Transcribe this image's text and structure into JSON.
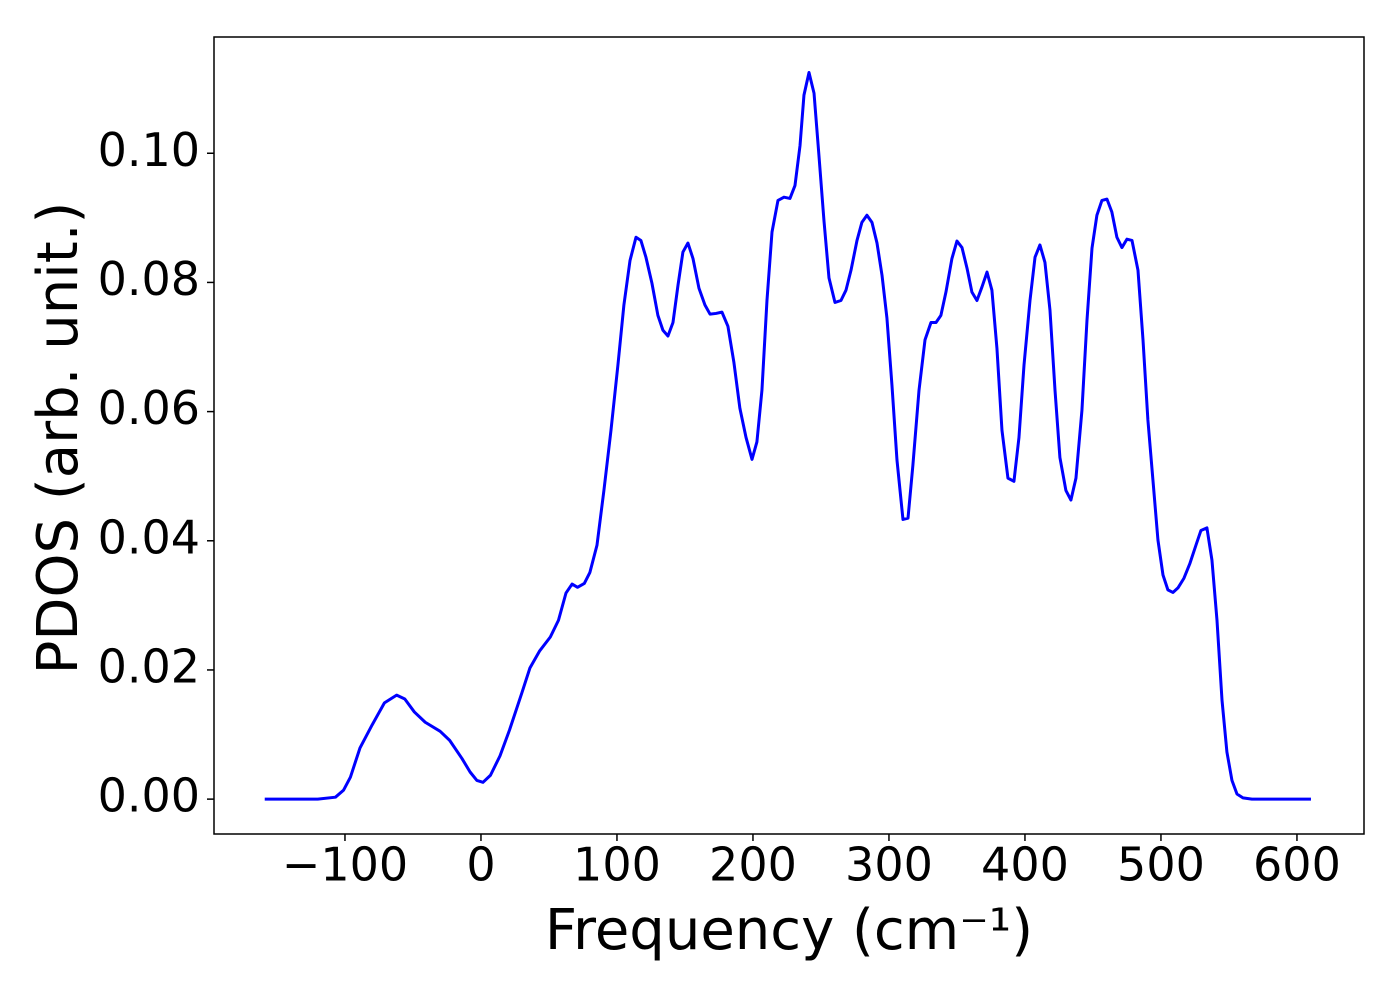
{
  "chart_data": {
    "type": "line",
    "x_label": "Frequency (cm⁻¹)",
    "y_label": "PDOS (arb. unit.)",
    "color": "#0000ff",
    "xlim": [
      -196.3,
      649.3
    ],
    "ylim": [
      -0.0054,
      0.118
    ],
    "xticks": [
      {
        "value": -100,
        "label": "−100"
      },
      0,
      100,
      200,
      300,
      400,
      500,
      600
    ],
    "yticks": [
      {
        "value": 0,
        "label": "0.00"
      },
      {
        "value": 0.02,
        "label": "0.02"
      },
      {
        "value": 0.04,
        "label": "0.04"
      },
      {
        "value": 0.06,
        "label": "0.06"
      },
      {
        "value": 0.08,
        "label": "0.08"
      },
      {
        "value": 0.1,
        "label": "0.10"
      }
    ],
    "x": [
      -159,
      -120,
      -107,
      -101,
      -96,
      -89,
      -80,
      -71,
      -62,
      -56,
      -49,
      -41,
      -30,
      -23,
      -14,
      -8,
      -3,
      1.5,
      7,
      14,
      21,
      30,
      36,
      43,
      51,
      57,
      62.5,
      67,
      71,
      76,
      80.1,
      85.3,
      90.4,
      95.6,
      100.7,
      105.1,
      109.6,
      114,
      117.6,
      121.3,
      125.7,
      130.1,
      133.8,
      137.5,
      141.2,
      144.9,
      148.5,
      152.2,
      155.9,
      160.3,
      164.7,
      168.4,
      172.8,
      177.2,
      181.6,
      186,
      190.4,
      194.9,
      199.3,
      202.9,
      206.6,
      210.3,
      214,
      218.4,
      222.8,
      227.2,
      230.9,
      234.6,
      237.5,
      241.2,
      244.9,
      248.5,
      252.2,
      255.9,
      260.3,
      264.7,
      268.4,
      272.1,
      276.5,
      280.1,
      283.8,
      287.5,
      291.2,
      294.9,
      298.5,
      302.2,
      305.9,
      310.3,
      314,
      317.6,
      322.1,
      326.5,
      330.9,
      334.6,
      338.2,
      341.9,
      346.3,
      350,
      353.7,
      357.4,
      361,
      364.7,
      368.4,
      372.1,
      375.7,
      379.4,
      383.1,
      387.5,
      391.9,
      395.6,
      399.3,
      403.7,
      407.4,
      411,
      414.7,
      418.4,
      422.1,
      425.7,
      430.1,
      433.8,
      437.5,
      441.9,
      445.6,
      449.3,
      452.9,
      456.6,
      460.3,
      463.9,
      467.6,
      471.3,
      475,
      478.7,
      483.1,
      486.8,
      490.4,
      494.1,
      497.8,
      501.5,
      505.1,
      508.8,
      512.5,
      516.9,
      521.3,
      525.7,
      529.4,
      533.8,
      537.5,
      541.2,
      544.9,
      548.5,
      552.2,
      555.9,
      560.3,
      566.9,
      610.3
    ],
    "values": [
      0,
      0,
      0.0003,
      0.0014,
      0.0034,
      0.0079,
      0.0115,
      0.0149,
      0.0161,
      0.0155,
      0.0135,
      0.0119,
      0.0105,
      0.0091,
      0.0063,
      0.0042,
      0.0029,
      0.0026,
      0.0037,
      0.0067,
      0.0107,
      0.0164,
      0.0203,
      0.0229,
      0.0251,
      0.0277,
      0.0319,
      0.0333,
      0.0328,
      0.0334,
      0.0351,
      0.0393,
      0.0478,
      0.0571,
      0.0672,
      0.0765,
      0.0834,
      0.087,
      0.0865,
      0.0839,
      0.0799,
      0.0749,
      0.0726,
      0.0717,
      0.0738,
      0.0796,
      0.0847,
      0.0861,
      0.0837,
      0.0791,
      0.0765,
      0.0751,
      0.0752,
      0.0754,
      0.0732,
      0.0676,
      0.0605,
      0.056,
      0.0526,
      0.0553,
      0.0633,
      0.0772,
      0.0878,
      0.0927,
      0.0932,
      0.093,
      0.095,
      0.1012,
      0.109,
      0.1125,
      0.1093,
      0.0997,
      0.0896,
      0.0807,
      0.0769,
      0.0772,
      0.0788,
      0.0819,
      0.0865,
      0.0893,
      0.0904,
      0.0893,
      0.0861,
      0.0811,
      0.0745,
      0.0641,
      0.0525,
      0.0433,
      0.0435,
      0.0517,
      0.0633,
      0.0711,
      0.0738,
      0.0738,
      0.0749,
      0.0785,
      0.0837,
      0.0864,
      0.0854,
      0.0822,
      0.0785,
      0.0772,
      0.0793,
      0.0816,
      0.0788,
      0.0698,
      0.0571,
      0.0497,
      0.0492,
      0.056,
      0.0672,
      0.0772,
      0.0839,
      0.0858,
      0.0831,
      0.0757,
      0.0633,
      0.0529,
      0.0478,
      0.0463,
      0.0497,
      0.0602,
      0.0741,
      0.0853,
      0.0904,
      0.0927,
      0.0929,
      0.0909,
      0.087,
      0.0854,
      0.0867,
      0.0865,
      0.0819,
      0.0711,
      0.0587,
      0.0494,
      0.0401,
      0.0347,
      0.0324,
      0.032,
      0.0327,
      0.0342,
      0.0365,
      0.0393,
      0.0416,
      0.042,
      0.037,
      0.0277,
      0.0153,
      0.0073,
      0.0029,
      0.0008,
      0.0002,
      0,
      0
    ]
  }
}
